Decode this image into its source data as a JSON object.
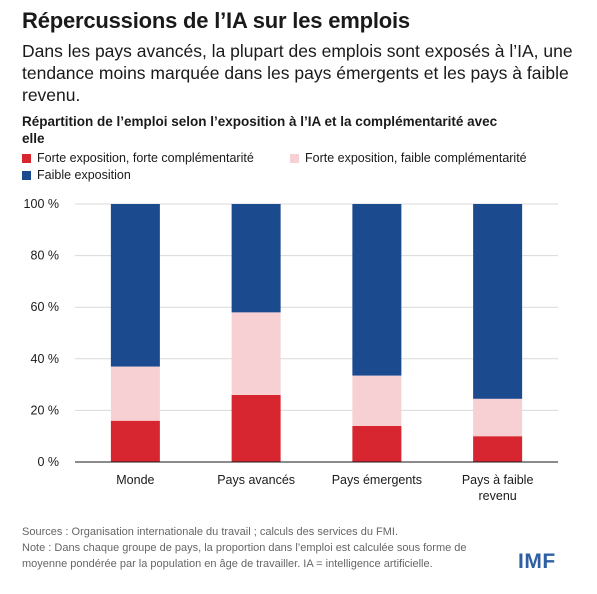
{
  "header": {
    "title": "Répercussions de l’IA sur les emplois",
    "subtitle": "Dans les pays avancés, la plupart des emplois sont exposés à l’IA, une tendance moins marquée dans les pays émergents et les pays à faible revenu."
  },
  "chart_data": {
    "type": "bar",
    "stacked": true,
    "title": "Répartition de l’emploi selon l’exposition à l’IA et la complémentarité avec elle",
    "categories": [
      [
        "Monde"
      ],
      [
        "Pays avancés"
      ],
      [
        "Pays émergents"
      ],
      [
        "Pays à faible",
        "revenu"
      ]
    ],
    "series": [
      {
        "name": "Forte exposition, forte complémentarité",
        "color": "#d7262f",
        "values": [
          16,
          26,
          14,
          10
        ]
      },
      {
        "name": "Forte exposition, faible complémentarité",
        "color": "#f7d0d3",
        "values": [
          21,
          32,
          19.5,
          14.5
        ]
      },
      {
        "name": "Faible exposition",
        "color": "#1b4a8f",
        "values": [
          63,
          42,
          66.5,
          75.5
        ]
      }
    ],
    "yticks": [
      "0 %",
      "20 %",
      "40 %",
      "60 %",
      "80 %",
      "100 %"
    ],
    "ylim": [
      0,
      100
    ],
    "grid": true,
    "legend_position": "top-left"
  },
  "footer": {
    "sources": "Sources : Organisation internationale du travail ; calculs des services du FMI.",
    "note": "Note : Dans chaque groupe de pays, la proportion dans l’emploi est calculée sous forme de moyenne pondérée par la population en âge de travailler. IA = intelligence artificielle."
  },
  "logo": {
    "text": "IMF"
  }
}
